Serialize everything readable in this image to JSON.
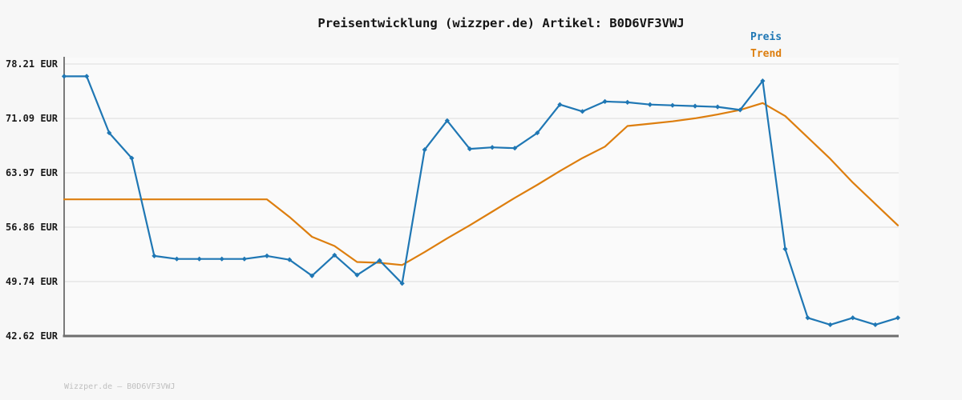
{
  "title": "Preisentwicklung (wizzper.de) Artikel: B0D6VF3VWJ",
  "footer_text": "Wizzper.de — B0D6VF3VWJ",
  "legend": {
    "price_label": "Preis",
    "trend_label": "Trend"
  },
  "colors": {
    "price": "#1f77b4",
    "trend": "#dd7e0e",
    "grid": "#e8e8e8",
    "y_axis": "#7a7a7a",
    "x_axis": "#6e6e6e",
    "title_text": "#141414",
    "tick_text": "#1a1a1a",
    "footer_text": "#bfbfbf",
    "page_bg": "#f7f7f7",
    "plot_bg": "#fafafa"
  },
  "chart_data": {
    "type": "line",
    "title": "Preisentwicklung (wizzper.de) Artikel: B0D6VF3VWJ",
    "xlabel": "",
    "ylabel": "EUR",
    "ylim": [
      42.62,
      78.21
    ],
    "yticks": [
      78.21,
      71.09,
      63.97,
      56.86,
      49.74,
      42.62
    ],
    "ytick_labels": [
      "78.21 EUR",
      "71.09 EUR",
      "63.97 EUR",
      "56.86 EUR",
      "49.74 EUR",
      "42.62 EUR"
    ],
    "x_tick_labels": [],
    "x_count": 38,
    "grid": "horizontal",
    "legend_position": "top-right",
    "series": [
      {
        "name": "Preis",
        "color": "#1f77b4",
        "marker": "diamond",
        "values": [
          76.6,
          76.6,
          69.2,
          65.9,
          53.1,
          52.7,
          52.7,
          52.7,
          52.7,
          53.1,
          52.6,
          50.5,
          53.2,
          50.6,
          52.5,
          49.5,
          67.0,
          70.8,
          67.1,
          67.3,
          67.2,
          69.2,
          72.9,
          72.0,
          73.3,
          73.2,
          72.9,
          72.8,
          72.7,
          72.6,
          72.2,
          76.0,
          54.0,
          45.0,
          44.1,
          45.0,
          44.1,
          45.0
        ]
      },
      {
        "name": "Trend",
        "color": "#dd7e0e",
        "marker": "none",
        "values": [
          60.5,
          60.5,
          60.5,
          60.5,
          60.5,
          60.5,
          60.5,
          60.5,
          60.5,
          60.5,
          58.2,
          55.6,
          54.4,
          52.3,
          52.2,
          51.9,
          53.6,
          55.4,
          57.1,
          58.9,
          60.7,
          62.4,
          64.2,
          65.9,
          67.4,
          70.1,
          70.4,
          70.7,
          71.1,
          71.6,
          72.2,
          73.1,
          71.4,
          68.6,
          65.8,
          62.7,
          59.9,
          57.1
        ]
      }
    ]
  }
}
